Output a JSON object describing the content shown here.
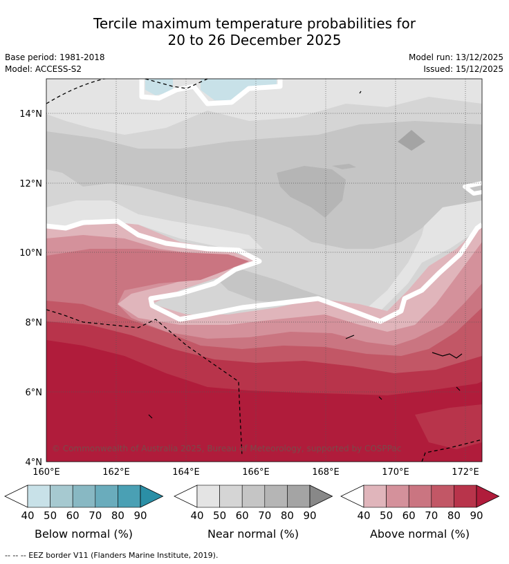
{
  "title": {
    "line1": "Tercile maximum temperature probabilities for",
    "line2": "20 to 26 December 2025"
  },
  "meta": {
    "base_period": "Base period: 1981-2018",
    "model": "Model: ACCESS-S2",
    "model_run": "Model run: 13/12/2025",
    "issued": "Issued: 15/12/2025"
  },
  "map": {
    "copyright": "© Commonwealth of Australia 2025, Bureau of Meteorology, supported by COSPPac",
    "lat_labels": [
      "14°N",
      "12°N",
      "10°N",
      "8°N",
      "6°N",
      "4°N"
    ],
    "lon_labels": [
      "160°E",
      "162°E",
      "164°E",
      "166°E",
      "168°E",
      "170°E",
      "172°E"
    ]
  },
  "colorbars": [
    {
      "label": "Below normal (%)",
      "ticks": [
        "40",
        "50",
        "60",
        "70",
        "80",
        "90"
      ],
      "colors": [
        "#c8e1e8",
        "#a6c9d0",
        "#88b8c3",
        "#6aacbc",
        "#4aa0b4",
        "#2b8fa6"
      ]
    },
    {
      "label": "Near normal (%)",
      "ticks": [
        "40",
        "50",
        "60",
        "70",
        "80",
        "90"
      ],
      "colors": [
        "#e4e4e4",
        "#d5d5d5",
        "#c5c5c5",
        "#b5b5b5",
        "#a4a4a4",
        "#888888"
      ]
    },
    {
      "label": "Above normal (%)",
      "ticks": [
        "40",
        "50",
        "60",
        "70",
        "80",
        "90"
      ],
      "colors": [
        "#e0b5bb",
        "#d4919b",
        "#ca7581",
        "#c25766",
        "#b8344b",
        "#b01c3b"
      ]
    }
  ],
  "footnote": "--  --  -- EEZ border V11 (Flanders Marine Institute, 2019)."
}
